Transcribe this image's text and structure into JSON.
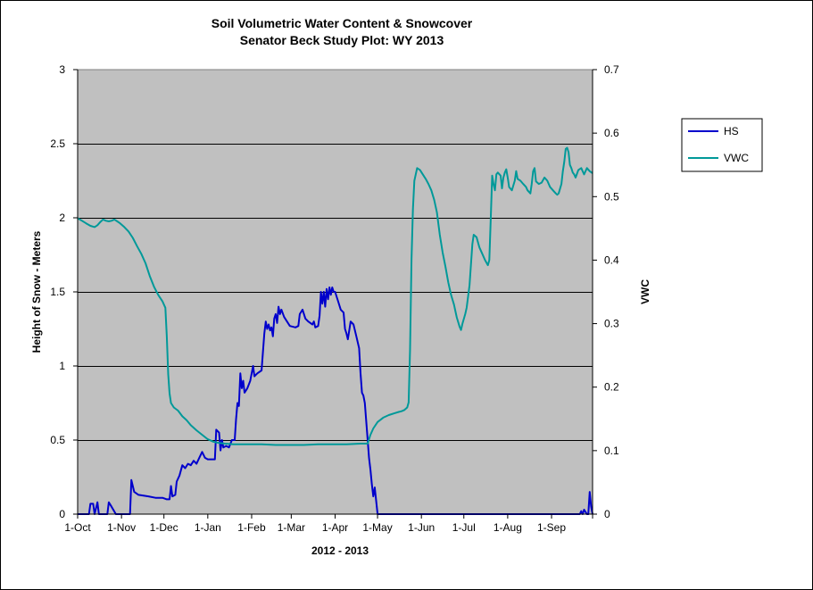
{
  "chart_data": {
    "type": "line",
    "title": "Soil Volumetric Water Content & Snowcover",
    "subtitle": "Senator Beck Study Plot: WY 2013",
    "xlabel": "2012 - 2013",
    "ylabel": "Height of Snow - Meters",
    "y2label": "VWC",
    "ylim": [
      0,
      3
    ],
    "y2lim": [
      0,
      0.7
    ],
    "yticks": [
      "0",
      "0.5",
      "1",
      "1.5",
      "2",
      "2.5",
      "3"
    ],
    "y2ticks": [
      "0",
      "0.1",
      "0.2",
      "0.3",
      "0.4",
      "0.5",
      "0.6",
      "0.7"
    ],
    "xlim": [
      0,
      364
    ],
    "xticks": [
      {
        "day": 0,
        "label": "1-Oct"
      },
      {
        "day": 31,
        "label": "1-Nov"
      },
      {
        "day": 61,
        "label": "1-Dec"
      },
      {
        "day": 92,
        "label": "1-Jan"
      },
      {
        "day": 123,
        "label": "1-Feb"
      },
      {
        "day": 151,
        "label": "1-Mar"
      },
      {
        "day": 182,
        "label": "1-Apr"
      },
      {
        "day": 212,
        "label": "1-May"
      },
      {
        "day": 243,
        "label": "1-Jun"
      },
      {
        "day": 273,
        "label": "1-Jul"
      },
      {
        "day": 304,
        "label": "1-Aug"
      },
      {
        "day": 335,
        "label": "1-Sep"
      }
    ],
    "grid": "horizontal",
    "legend": "right",
    "plot_bg": "#c0c0c0",
    "series": [
      {
        "name": "HS",
        "axis": "left",
        "color": "#0000cc",
        "points": [
          [
            0,
            0
          ],
          [
            8,
            0
          ],
          [
            9,
            0.07
          ],
          [
            11,
            0.07
          ],
          [
            12,
            0
          ],
          [
            14,
            0.08
          ],
          [
            15,
            0
          ],
          [
            21,
            0
          ],
          [
            22,
            0.08
          ],
          [
            24,
            0.05
          ],
          [
            27,
            0
          ],
          [
            37,
            0
          ],
          [
            38,
            0.23
          ],
          [
            40,
            0.15
          ],
          [
            43,
            0.13
          ],
          [
            50,
            0.12
          ],
          [
            55,
            0.11
          ],
          [
            60,
            0.11
          ],
          [
            63,
            0.1
          ],
          [
            65,
            0.1
          ],
          [
            66,
            0.19
          ],
          [
            67,
            0.12
          ],
          [
            69,
            0.13
          ],
          [
            70,
            0.22
          ],
          [
            72,
            0.26
          ],
          [
            74,
            0.33
          ],
          [
            76,
            0.31
          ],
          [
            78,
            0.34
          ],
          [
            80,
            0.33
          ],
          [
            82,
            0.36
          ],
          [
            84,
            0.34
          ],
          [
            86,
            0.38
          ],
          [
            88,
            0.42
          ],
          [
            90,
            0.38
          ],
          [
            92,
            0.37
          ],
          [
            97,
            0.37
          ],
          [
            98,
            0.57
          ],
          [
            100,
            0.55
          ],
          [
            101,
            0.43
          ],
          [
            102,
            0.5
          ],
          [
            103,
            0.45
          ],
          [
            105,
            0.46
          ],
          [
            107,
            0.45
          ],
          [
            109,
            0.5
          ],
          [
            111,
            0.5
          ],
          [
            112,
            0.64
          ],
          [
            113,
            0.75
          ],
          [
            114,
            0.73
          ],
          [
            115,
            0.95
          ],
          [
            116,
            0.85
          ],
          [
            117,
            0.9
          ],
          [
            118,
            0.82
          ],
          [
            120,
            0.85
          ],
          [
            122,
            0.9
          ],
          [
            124,
            1.0
          ],
          [
            125,
            0.93
          ],
          [
            127,
            0.95
          ],
          [
            130,
            0.97
          ],
          [
            132,
            1.22
          ],
          [
            133,
            1.3
          ],
          [
            134,
            1.25
          ],
          [
            135,
            1.28
          ],
          [
            136,
            1.24
          ],
          [
            137,
            1.26
          ],
          [
            138,
            1.2
          ],
          [
            139,
            1.32
          ],
          [
            140,
            1.35
          ],
          [
            141,
            1.29
          ],
          [
            142,
            1.4
          ],
          [
            143,
            1.35
          ],
          [
            144,
            1.38
          ],
          [
            146,
            1.33
          ],
          [
            148,
            1.3
          ],
          [
            150,
            1.27
          ],
          [
            154,
            1.26
          ],
          [
            156,
            1.27
          ],
          [
            157,
            1.35
          ],
          [
            159,
            1.38
          ],
          [
            161,
            1.32
          ],
          [
            163,
            1.3
          ],
          [
            166,
            1.28
          ],
          [
            167,
            1.3
          ],
          [
            168,
            1.26
          ],
          [
            170,
            1.27
          ],
          [
            171,
            1.34
          ],
          [
            172,
            1.5
          ],
          [
            173,
            1.42
          ],
          [
            174,
            1.5
          ],
          [
            175,
            1.4
          ],
          [
            176,
            1.52
          ],
          [
            177,
            1.45
          ],
          [
            178,
            1.53
          ],
          [
            179,
            1.48
          ],
          [
            180,
            1.53
          ],
          [
            181,
            1.5
          ],
          [
            182,
            1.5
          ],
          [
            184,
            1.44
          ],
          [
            186,
            1.38
          ],
          [
            188,
            1.36
          ],
          [
            189,
            1.25
          ],
          [
            190,
            1.22
          ],
          [
            191,
            1.18
          ],
          [
            193,
            1.3
          ],
          [
            195,
            1.28
          ],
          [
            197,
            1.2
          ],
          [
            199,
            1.12
          ],
          [
            200,
            0.95
          ],
          [
            201,
            0.82
          ],
          [
            202,
            0.8
          ],
          [
            203,
            0.75
          ],
          [
            205,
            0.5
          ],
          [
            206,
            0.38
          ],
          [
            207,
            0.3
          ],
          [
            208,
            0.2
          ],
          [
            209,
            0.12
          ],
          [
            210,
            0.18
          ],
          [
            212,
            0
          ],
          [
            220,
            0
          ],
          [
            230,
            0
          ],
          [
            240,
            0
          ],
          [
            250,
            0
          ],
          [
            260,
            0
          ],
          [
            270,
            0
          ],
          [
            280,
            0
          ],
          [
            290,
            0
          ],
          [
            300,
            0
          ],
          [
            310,
            0
          ],
          [
            320,
            0
          ],
          [
            330,
            0
          ],
          [
            340,
            0
          ],
          [
            350,
            0
          ],
          [
            355,
            0
          ],
          [
            356,
            0.02
          ],
          [
            357,
            0
          ],
          [
            358,
            0.03
          ],
          [
            360,
            0
          ],
          [
            361,
            0
          ],
          [
            362,
            0.15
          ],
          [
            363,
            0.05
          ],
          [
            364,
            0
          ]
        ]
      },
      {
        "name": "VWC",
        "axis": "right",
        "color": "#009999",
        "points": [
          [
            0,
            0.466
          ],
          [
            3,
            0.462
          ],
          [
            6,
            0.458
          ],
          [
            9,
            0.454
          ],
          [
            12,
            0.452
          ],
          [
            14,
            0.455
          ],
          [
            16,
            0.46
          ],
          [
            18,
            0.464
          ],
          [
            20,
            0.462
          ],
          [
            22,
            0.461
          ],
          [
            24,
            0.462
          ],
          [
            26,
            0.464
          ],
          [
            28,
            0.461
          ],
          [
            30,
            0.458
          ],
          [
            33,
            0.452
          ],
          [
            36,
            0.445
          ],
          [
            39,
            0.435
          ],
          [
            42,
            0.422
          ],
          [
            45,
            0.41
          ],
          [
            48,
            0.395
          ],
          [
            51,
            0.375
          ],
          [
            54,
            0.358
          ],
          [
            57,
            0.345
          ],
          [
            60,
            0.335
          ],
          [
            62,
            0.325
          ],
          [
            63,
            0.28
          ],
          [
            64,
            0.22
          ],
          [
            65,
            0.19
          ],
          [
            66,
            0.175
          ],
          [
            68,
            0.168
          ],
          [
            71,
            0.163
          ],
          [
            74,
            0.154
          ],
          [
            77,
            0.148
          ],
          [
            80,
            0.14
          ],
          [
            84,
            0.132
          ],
          [
            88,
            0.125
          ],
          [
            92,
            0.118
          ],
          [
            96,
            0.114
          ],
          [
            100,
            0.112
          ],
          [
            104,
            0.111
          ],
          [
            110,
            0.11
          ],
          [
            120,
            0.11
          ],
          [
            130,
            0.11
          ],
          [
            140,
            0.109
          ],
          [
            150,
            0.109
          ],
          [
            160,
            0.109
          ],
          [
            170,
            0.11
          ],
          [
            180,
            0.11
          ],
          [
            190,
            0.11
          ],
          [
            200,
            0.111
          ],
          [
            205,
            0.111
          ],
          [
            207,
            0.125
          ],
          [
            209,
            0.135
          ],
          [
            212,
            0.145
          ],
          [
            216,
            0.152
          ],
          [
            220,
            0.156
          ],
          [
            224,
            0.159
          ],
          [
            227,
            0.161
          ],
          [
            229,
            0.162
          ],
          [
            231,
            0.164
          ],
          [
            233,
            0.168
          ],
          [
            234,
            0.176
          ],
          [
            235,
            0.26
          ],
          [
            236,
            0.4
          ],
          [
            237,
            0.48
          ],
          [
            238,
            0.525
          ],
          [
            240,
            0.545
          ],
          [
            242,
            0.542
          ],
          [
            244,
            0.535
          ],
          [
            246,
            0.528
          ],
          [
            248,
            0.52
          ],
          [
            250,
            0.51
          ],
          [
            252,
            0.495
          ],
          [
            254,
            0.475
          ],
          [
            256,
            0.44
          ],
          [
            258,
            0.412
          ],
          [
            260,
            0.39
          ],
          [
            262,
            0.365
          ],
          [
            264,
            0.345
          ],
          [
            266,
            0.33
          ],
          [
            268,
            0.31
          ],
          [
            270,
            0.295
          ],
          [
            271,
            0.29
          ],
          [
            272,
            0.3
          ],
          [
            274,
            0.315
          ],
          [
            275,
            0.325
          ],
          [
            277,
            0.36
          ],
          [
            279,
            0.425
          ],
          [
            280,
            0.44
          ],
          [
            282,
            0.436
          ],
          [
            284,
            0.42
          ],
          [
            286,
            0.41
          ],
          [
            288,
            0.4
          ],
          [
            290,
            0.392
          ],
          [
            291,
            0.4
          ],
          [
            292,
            0.465
          ],
          [
            293,
            0.533
          ],
          [
            294,
            0.52
          ],
          [
            295,
            0.51
          ],
          [
            296,
            0.535
          ],
          [
            297,
            0.538
          ],
          [
            299,
            0.533
          ],
          [
            300,
            0.513
          ],
          [
            301,
            0.53
          ],
          [
            302,
            0.538
          ],
          [
            303,
            0.543
          ],
          [
            304,
            0.53
          ],
          [
            305,
            0.515
          ],
          [
            307,
            0.51
          ],
          [
            309,
            0.525
          ],
          [
            310,
            0.54
          ],
          [
            311,
            0.528
          ],
          [
            313,
            0.525
          ],
          [
            315,
            0.52
          ],
          [
            317,
            0.515
          ],
          [
            318,
            0.51
          ],
          [
            320,
            0.505
          ],
          [
            321,
            0.52
          ],
          [
            322,
            0.54
          ],
          [
            323,
            0.545
          ],
          [
            324,
            0.524
          ],
          [
            326,
            0.52
          ],
          [
            328,
            0.522
          ],
          [
            330,
            0.53
          ],
          [
            332,
            0.525
          ],
          [
            334,
            0.515
          ],
          [
            336,
            0.51
          ],
          [
            338,
            0.505
          ],
          [
            339,
            0.503
          ],
          [
            340,
            0.505
          ],
          [
            342,
            0.52
          ],
          [
            343,
            0.54
          ],
          [
            344,
            0.555
          ],
          [
            345,
            0.575
          ],
          [
            346,
            0.577
          ],
          [
            347,
            0.57
          ],
          [
            348,
            0.55
          ],
          [
            349,
            0.545
          ],
          [
            350,
            0.538
          ],
          [
            351,
            0.535
          ],
          [
            352,
            0.53
          ],
          [
            354,
            0.542
          ],
          [
            356,
            0.545
          ],
          [
            358,
            0.535
          ],
          [
            360,
            0.545
          ],
          [
            362,
            0.54
          ],
          [
            364,
            0.537
          ]
        ]
      }
    ]
  }
}
